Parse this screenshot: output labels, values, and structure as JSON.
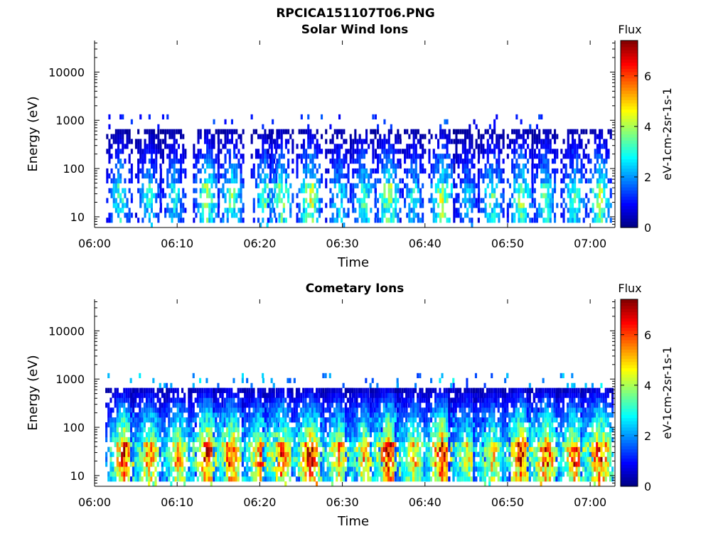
{
  "figure": {
    "title": "RPCICA151107T06.PNG"
  },
  "chart_data": [
    {
      "type": "heatmap",
      "title": "Solar Wind Ions",
      "xlabel": "Time",
      "ylabel": "Energy (eV)",
      "x_ticks": [
        "06:00",
        "06:10",
        "06:20",
        "06:30",
        "06:40",
        "06:50",
        "07:00"
      ],
      "y_ticks": [
        "10",
        "100",
        "1000",
        "10000"
      ],
      "y_scale": "log",
      "xlim_minutes": [
        0,
        63
      ],
      "ylim": [
        6,
        45000
      ],
      "colorbar": {
        "title": "Flux",
        "label": "eV-1cm-2sr-1s-1",
        "range": [
          0,
          7.4
        ],
        "ticks": [
          "0",
          "2",
          "4",
          "6"
        ]
      },
      "scan_minutes": [
        3.0,
        6.5,
        9.5,
        13.5,
        16.5,
        20.5,
        22.5,
        26.0,
        29.5,
        32.5,
        35.5,
        38.5,
        42.0,
        45.0,
        48.0,
        51.5,
        54.5,
        58.0,
        61.0
      ],
      "peak_flux": [
        3.3,
        3.0,
        3.0,
        4.2,
        3.8,
        3.5,
        4.0,
        4.5,
        3.0,
        3.6,
        4.3,
        3.0,
        4.5,
        2.5,
        3.5,
        4.0,
        3.7,
        3.5,
        4.3
      ]
    },
    {
      "type": "heatmap",
      "title": "Cometary Ions",
      "xlabel": "Time",
      "ylabel": "Energy (eV)",
      "x_ticks": [
        "06:00",
        "06:10",
        "06:20",
        "06:30",
        "06:40",
        "06:50",
        "07:00"
      ],
      "y_ticks": [
        "10",
        "100",
        "1000",
        "10000"
      ],
      "y_scale": "log",
      "xlim_minutes": [
        0,
        63
      ],
      "ylim": [
        6,
        45000
      ],
      "colorbar": {
        "title": "Flux",
        "label": "eV-1cm-2sr-1s-1",
        "range": [
          0,
          7.4
        ],
        "ticks": [
          "0",
          "2",
          "4",
          "6"
        ]
      },
      "scan_minutes": [
        3.5,
        6.5,
        10.0,
        13.5,
        16.5,
        20.0,
        22.5,
        26.0,
        29.5,
        32.5,
        35.5,
        38.5,
        42.0,
        45.0,
        48.0,
        51.5,
        54.5,
        58.0,
        61.0
      ],
      "peak_flux": [
        6.5,
        5.8,
        5.5,
        7.0,
        6.6,
        6.0,
        6.3,
        6.8,
        5.6,
        5.5,
        7.0,
        5.4,
        7.0,
        4.8,
        5.3,
        6.8,
        6.5,
        6.2,
        6.8
      ]
    }
  ]
}
